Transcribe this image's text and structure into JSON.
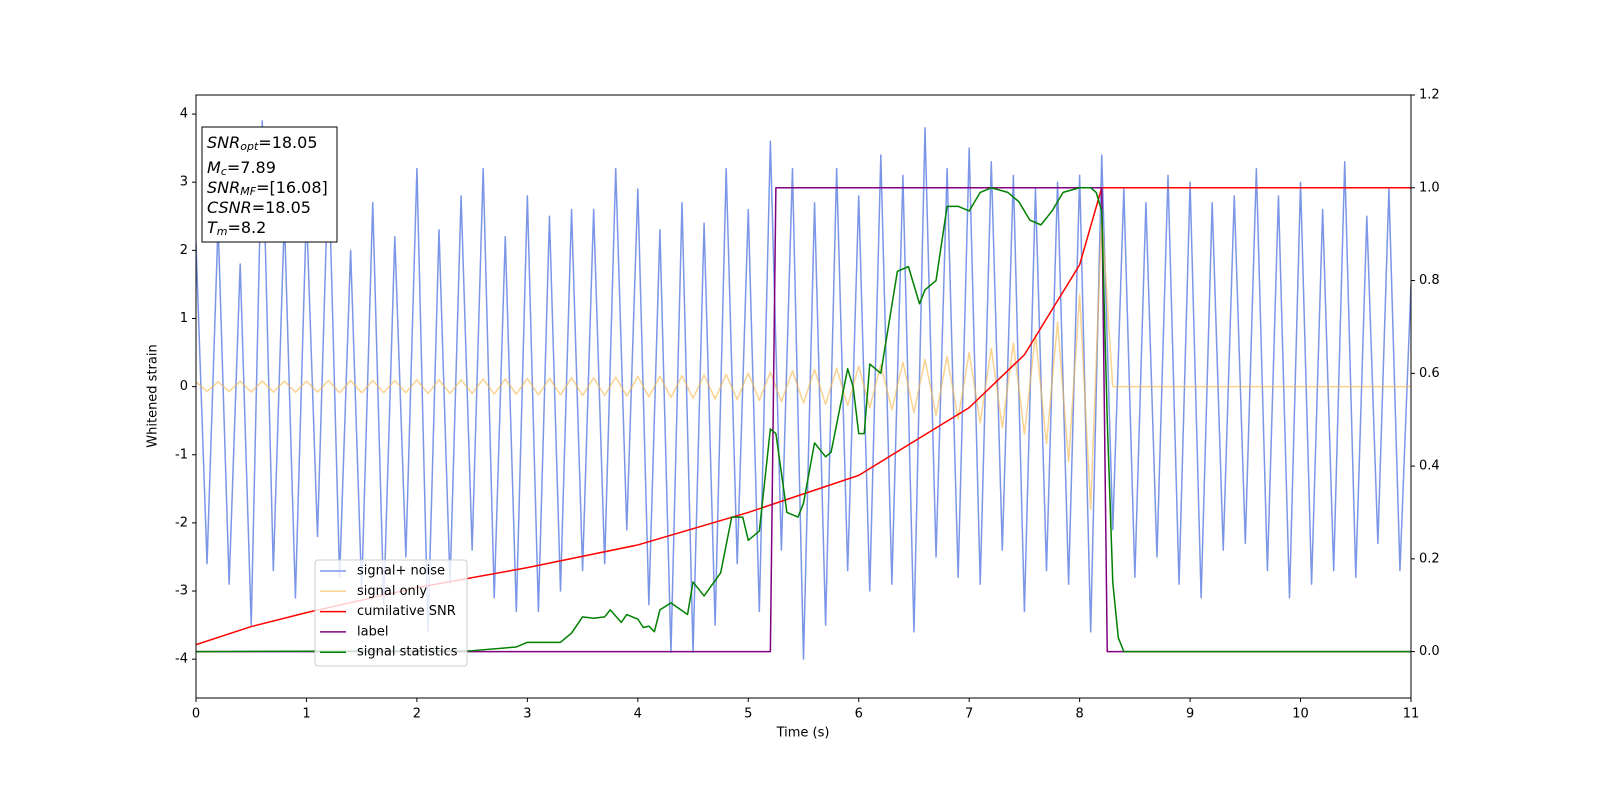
{
  "chart_data": {
    "type": "line",
    "xlabel": "Time (s)",
    "ylabel": "Whitened strain",
    "xlim": [
      0,
      11
    ],
    "xticks": [
      0,
      1,
      2,
      3,
      4,
      5,
      6,
      7,
      8,
      9,
      10,
      11
    ],
    "ylim": [
      -4.57,
      4.28
    ],
    "yticks": [
      -4,
      -3,
      -2,
      -1,
      0,
      1,
      2,
      3,
      4
    ],
    "y2lim": [
      -0.1,
      1.2
    ],
    "y2ticks": [
      {
        "value": 0,
        "label": "0.0"
      },
      {
        "value": 0.2,
        "label": "0.2"
      },
      {
        "value": 0.4,
        "label": "0.4"
      },
      {
        "value": 0.6,
        "label": "0.6"
      },
      {
        "value": 0.8,
        "label": "0.8"
      },
      {
        "value": 1,
        "label": "1.0"
      },
      {
        "value": 1.2,
        "label": "1.2"
      }
    ],
    "legend": "lower left",
    "annotations": [
      {
        "main": "SNR",
        "sub": "opt",
        "text": "=18.05"
      },
      {
        "main": "M",
        "sub": "c",
        "text": "=7.89"
      },
      {
        "main": "SNR",
        "sub": "MF",
        "text": "=[16.08]"
      },
      {
        "main": "CSNR",
        "text": "=18.05"
      },
      {
        "main": "T",
        "sub": "m",
        "text": "=8.2"
      }
    ],
    "x": [
      0,
      0.1,
      0.2,
      0.3,
      0.4,
      0.5,
      0.6,
      0.7,
      0.8,
      0.9,
      1,
      1.1,
      1.2,
      1.3,
      1.4,
      1.5,
      1.6,
      1.7,
      1.8,
      1.9,
      2,
      2.1,
      2.2,
      2.3,
      2.4,
      2.5,
      2.6,
      2.7,
      2.8,
      2.9,
      3,
      3.1,
      3.2,
      3.3,
      3.4,
      3.5,
      3.6,
      3.7,
      3.8,
      3.9,
      4,
      4.1,
      4.2,
      4.3,
      4.4,
      4.5,
      4.6,
      4.7,
      4.8,
      4.9,
      5,
      5.1,
      5.2,
      5.3,
      5.4,
      5.5,
      5.6,
      5.7,
      5.8,
      5.9,
      6,
      6.1,
      6.2,
      6.3,
      6.4,
      6.5,
      6.6,
      6.7,
      6.8,
      6.9,
      7,
      7.1,
      7.2,
      7.3,
      7.4,
      7.5,
      7.6,
      7.7,
      7.8,
      7.9,
      8,
      8.1,
      8.2,
      8.3,
      8.4,
      8.5,
      8.6,
      8.7,
      8.8,
      8.9,
      9,
      9.1,
      9.2,
      9.3,
      9.4,
      9.5,
      9.6,
      9.7,
      9.8,
      9.9,
      10,
      10.1,
      10.2,
      10.3,
      10.4,
      10.5,
      10.6,
      10.7,
      10.8,
      10.9,
      11
    ],
    "series": [
      {
        "name": "signal+ noise",
        "color": "#7b96e8",
        "axis": "y",
        "values": [
          2.1,
          -2.6,
          2.4,
          -2.9,
          1.8,
          -3.5,
          3.9,
          -2.7,
          2.5,
          -3.1,
          2.6,
          -2.2,
          3.3,
          -2.8,
          2.0,
          -3.0,
          2.7,
          -3.2,
          2.2,
          -2.5,
          3.2,
          -3.6,
          2.3,
          -2.9,
          2.8,
          -2.4,
          3.2,
          -3.1,
          2.2,
          -3.3,
          2.8,
          -3.3,
          2.5,
          -3.0,
          2.6,
          -2.7,
          2.6,
          -2.6,
          3.2,
          -2.1,
          2.9,
          -3.2,
          2.3,
          -3.9,
          2.7,
          -3.9,
          2.4,
          -3.5,
          3.2,
          -2.6,
          2.6,
          -3.3,
          3.6,
          -2.4,
          3.2,
          -4.0,
          2.7,
          -3.5,
          3.2,
          -2.7,
          2.8,
          -3.0,
          3.4,
          -2.9,
          3.1,
          -3.6,
          3.8,
          -2.5,
          3.2,
          -2.8,
          3.5,
          -2.9,
          3.3,
          -2.4,
          3.1,
          -3.3,
          2.9,
          -2.7,
          3.0,
          -2.9,
          3.1,
          -3.6,
          3.4,
          -2.1,
          2.9,
          -2.8,
          2.7,
          -2.5,
          3.1,
          -2.9,
          3.0,
          -3.1,
          2.7,
          -2.4,
          2.8,
          -2.3,
          3.2,
          -2.7,
          2.8,
          -3.1,
          3.0,
          -2.9,
          2.6,
          -2.7,
          3.3,
          -2.8,
          2.5,
          -2.3,
          2.9,
          -2.7,
          1.5
        ]
      },
      {
        "name": "signal only",
        "color": "#f5b54a",
        "axis": "y",
        "values": [
          0.07,
          -0.07,
          0.07,
          -0.07,
          0.08,
          -0.08,
          0.08,
          -0.08,
          0.08,
          -0.08,
          0.08,
          -0.08,
          0.09,
          -0.09,
          0.09,
          -0.09,
          0.09,
          -0.09,
          0.09,
          -0.09,
          0.1,
          -0.1,
          0.1,
          -0.1,
          0.1,
          -0.1,
          0.11,
          -0.11,
          0.11,
          -0.11,
          0.12,
          -0.12,
          0.12,
          -0.12,
          0.13,
          -0.13,
          0.13,
          -0.13,
          0.14,
          -0.14,
          0.15,
          -0.15,
          0.15,
          -0.16,
          0.16,
          -0.17,
          0.17,
          -0.18,
          0.18,
          -0.19,
          0.2,
          -0.2,
          0.21,
          -0.22,
          0.23,
          -0.24,
          0.25,
          -0.26,
          0.27,
          -0.28,
          0.3,
          -0.31,
          0.32,
          -0.34,
          0.36,
          -0.38,
          0.4,
          -0.42,
          0.44,
          -0.47,
          0.5,
          -0.53,
          0.56,
          -0.6,
          0.64,
          -0.7,
          0.76,
          -0.84,
          0.95,
          -1.1,
          1.35,
          -1.8,
          2.5,
          0,
          0,
          0,
          0,
          0,
          0,
          0,
          0,
          0,
          0,
          0,
          0,
          0,
          0,
          0,
          0,
          0,
          0,
          0,
          0,
          0,
          0,
          0,
          0,
          0,
          0,
          0,
          0
        ]
      },
      {
        "name": "cumilative SNR",
        "color": "#ff0000",
        "axis": "y2",
        "x": [
          0,
          0.5,
          1,
          2,
          3,
          4,
          5,
          6,
          7,
          7.5,
          8,
          8.2,
          8.25,
          11
        ],
        "values": [
          0.015,
          0.054,
          0.084,
          0.138,
          0.181,
          0.23,
          0.3,
          0.38,
          0.526,
          0.64,
          0.834,
          1,
          1,
          1
        ]
      },
      {
        "name": "label",
        "color": "#800080",
        "axis": "y2",
        "x": [
          0,
          5.2,
          5.25,
          8.2,
          8.25,
          11
        ],
        "values": [
          0,
          0,
          1,
          1,
          0,
          0
        ]
      },
      {
        "name": "signal statistics",
        "color": "#008000",
        "axis": "y2",
        "x": [
          0,
          2.5,
          2.9,
          3.0,
          3.3,
          3.4,
          3.5,
          3.6,
          3.7,
          3.75,
          3.85,
          3.9,
          4.0,
          4.05,
          4.1,
          4.15,
          4.2,
          4.3,
          4.45,
          4.5,
          4.6,
          4.75,
          4.85,
          4.95,
          5.0,
          5.1,
          5.2,
          5.25,
          5.35,
          5.45,
          5.5,
          5.6,
          5.7,
          5.75,
          5.9,
          5.95,
          6.0,
          6.05,
          6.1,
          6.2,
          6.35,
          6.45,
          6.55,
          6.6,
          6.7,
          6.8,
          6.9,
          7.0,
          7.1,
          7.2,
          7.35,
          7.45,
          7.55,
          7.65,
          7.75,
          7.85,
          8.0,
          8.1,
          8.15,
          8.2,
          8.25,
          8.3,
          8.35,
          8.4,
          11
        ],
        "values": [
          0,
          0.002,
          0.01,
          0.02,
          0.02,
          0.04,
          0.075,
          0.072,
          0.075,
          0.09,
          0.063,
          0.08,
          0.07,
          0.052,
          0.055,
          0.043,
          0.09,
          0.105,
          0.08,
          0.15,
          0.12,
          0.17,
          0.29,
          0.29,
          0.24,
          0.26,
          0.48,
          0.47,
          0.3,
          0.29,
          0.32,
          0.45,
          0.42,
          0.43,
          0.61,
          0.57,
          0.47,
          0.47,
          0.62,
          0.6,
          0.82,
          0.83,
          0.75,
          0.78,
          0.8,
          0.96,
          0.96,
          0.95,
          0.99,
          1.0,
          0.99,
          0.97,
          0.93,
          0.92,
          0.95,
          0.99,
          1.0,
          1.0,
          0.99,
          0.95,
          0.5,
          0.15,
          0.03,
          0.0,
          0
        ]
      }
    ]
  }
}
